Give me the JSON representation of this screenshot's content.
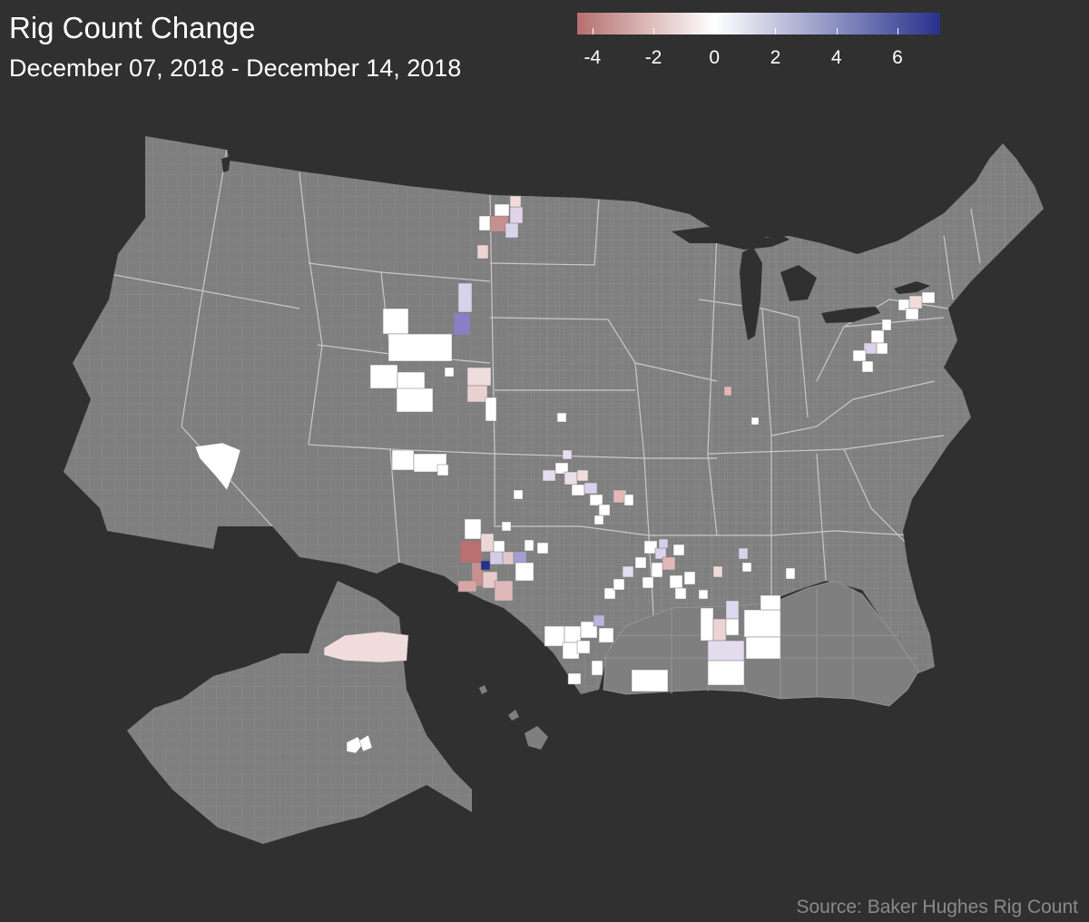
{
  "title": "Rig Count Change",
  "subtitle": "December 07, 2018 - December 14, 2018",
  "source": "Source: Baker Hughes Rig Count",
  "legend": {
    "min": -4.5,
    "max": 7.4,
    "ticks": [
      {
        "value": -4,
        "label": "-4"
      },
      {
        "value": -2,
        "label": "-2"
      },
      {
        "value": 0,
        "label": "0"
      },
      {
        "value": 2,
        "label": "2"
      },
      {
        "value": 4,
        "label": "4"
      },
      {
        "value": 6,
        "label": "6"
      }
    ],
    "color_low": "#b5706d",
    "color_mid": "#ffffff",
    "color_high": "#27318c"
  },
  "colors": {
    "background": "#303030",
    "land": "#7f7f7f",
    "county_lines": "#9a9a9a",
    "state_lines": "#c4c4c4"
  }
}
